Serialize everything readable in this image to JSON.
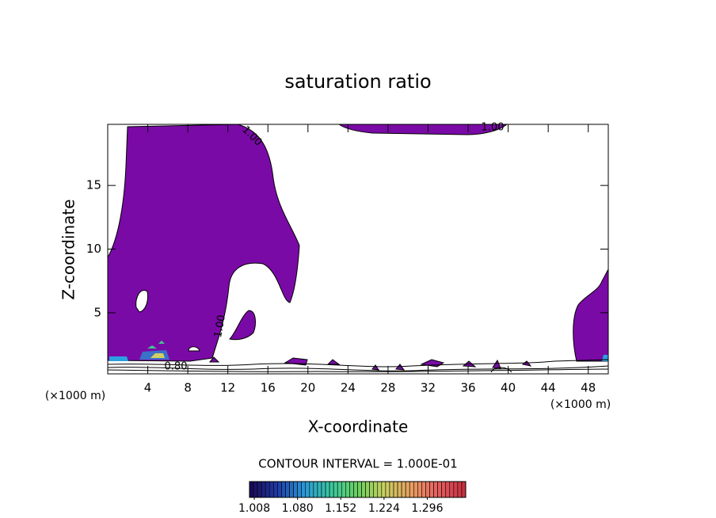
{
  "chart_data": {
    "type": "contour",
    "title": "saturation ratio",
    "xlabel": "X-coordinate",
    "ylabel": "Z-coordinate",
    "x_unit_label": "(×1000 m)",
    "xlim": [
      0,
      50
    ],
    "ylim": [
      0.2,
      19.8
    ],
    "xticks": [
      4,
      8,
      12,
      16,
      20,
      24,
      28,
      32,
      36,
      40,
      44,
      48
    ],
    "yticks": [
      5,
      10,
      15
    ],
    "fill_color": "#7a0aa6",
    "contour_labels": [
      "1.00",
      "1.00",
      "1.00",
      "0.80"
    ],
    "contour_interval_text": "CONTOUR INTERVAL = 1.000E-01",
    "colorbar": {
      "lim": [
        1.0,
        1.36
      ],
      "colors": [
        "#1a0a5a",
        "#1e3ca8",
        "#2a9ad8",
        "#3ac8a0",
        "#6ad060",
        "#c8d060",
        "#e8a060",
        "#e86060",
        "#c83040"
      ],
      "ticks": [
        {
          "value": 1.008,
          "label": "1.008"
        },
        {
          "value": 1.08,
          "label": "1.080"
        },
        {
          "value": 1.152,
          "label": "1.152"
        },
        {
          "value": 1.224,
          "label": "1.224"
        },
        {
          "value": 1.296,
          "label": "1.296"
        }
      ]
    }
  }
}
